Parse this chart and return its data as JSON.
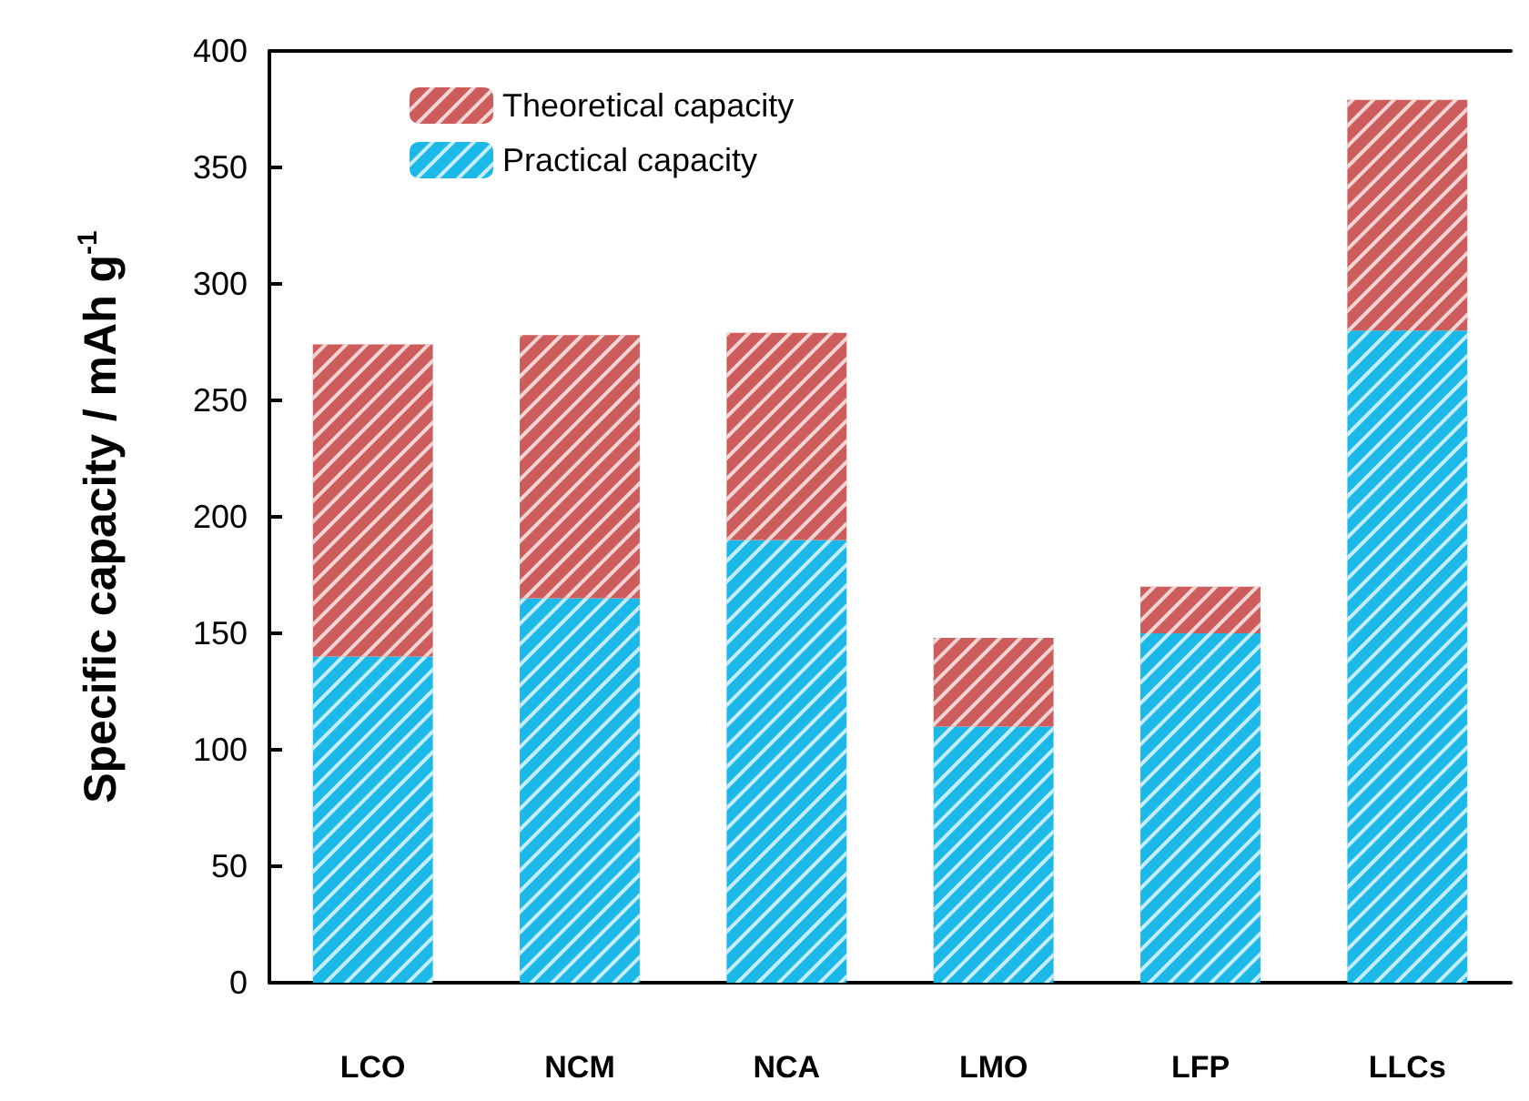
{
  "chart_data": {
    "type": "bar",
    "stacked": true,
    "ylabel": "Specific capacity / mAh g$^{-1}$",
    "categories": [
      "LCO",
      "NCM",
      "NCA",
      "LMO",
      "LFP",
      "LLCs"
    ],
    "series": [
      {
        "name": "Practical capacity",
        "color": "#1cb8e8",
        "values": [
          140,
          165,
          190,
          110,
          150,
          280
        ]
      },
      {
        "name": "Theoretical capacity",
        "color": "#cd5c5c",
        "values": [
          134,
          113,
          89,
          38,
          20,
          99
        ]
      }
    ],
    "ylim": [
      0,
      400
    ],
    "yticks": [
      0,
      50,
      100,
      150,
      200,
      250,
      300,
      350,
      400
    ],
    "grid": false,
    "legend": "top left"
  }
}
